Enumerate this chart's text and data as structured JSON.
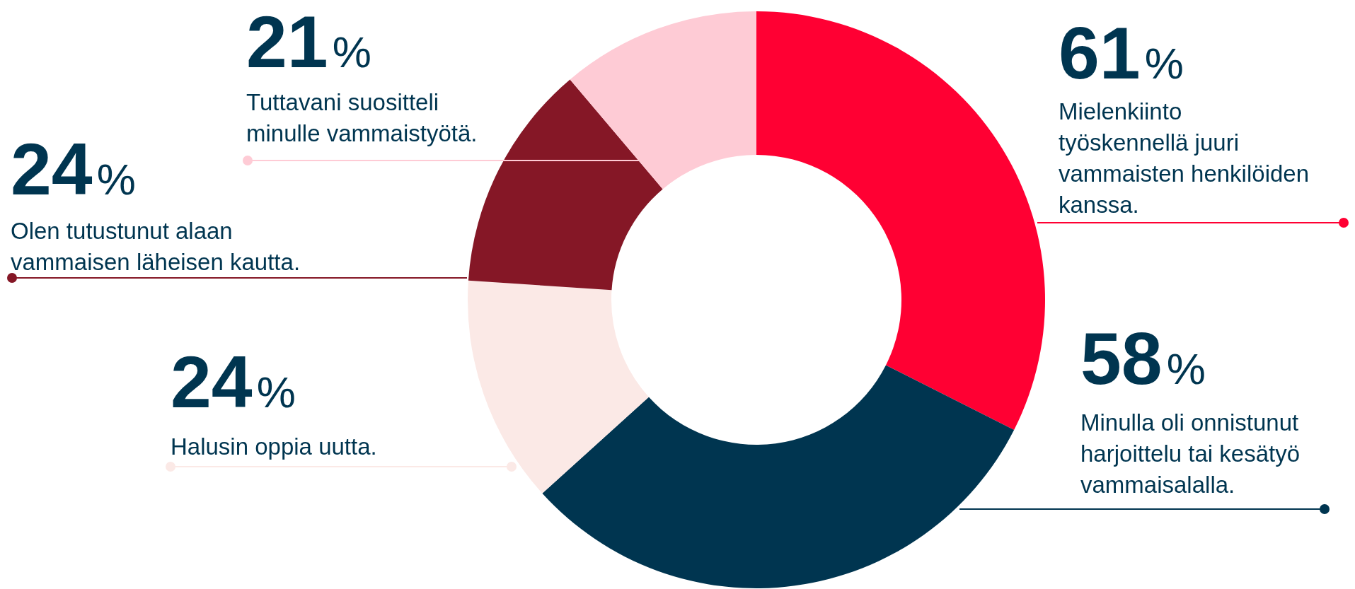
{
  "chart_data": {
    "type": "donut",
    "categories": [
      "Mielenkiinto työskennellä juuri vammaisten henkilöiden kanssa.",
      "Minulla oli onnistunut harjoittelu tai kesätyö vammaisalalla.",
      "Halusin oppia uutta.",
      "Olen tutustunut alaan vammaisen läheisen kautta.",
      "Tuttavani suositteli minulle vammaistyötä."
    ],
    "values": [
      61,
      58,
      24,
      24,
      21
    ],
    "colors": [
      "#ff0033",
      "#003550",
      "#fbe9e6",
      "#851726",
      "#fecbd5"
    ],
    "value_labels": [
      "61%",
      "58%",
      "24%",
      "24%",
      "21%"
    ]
  }
}
